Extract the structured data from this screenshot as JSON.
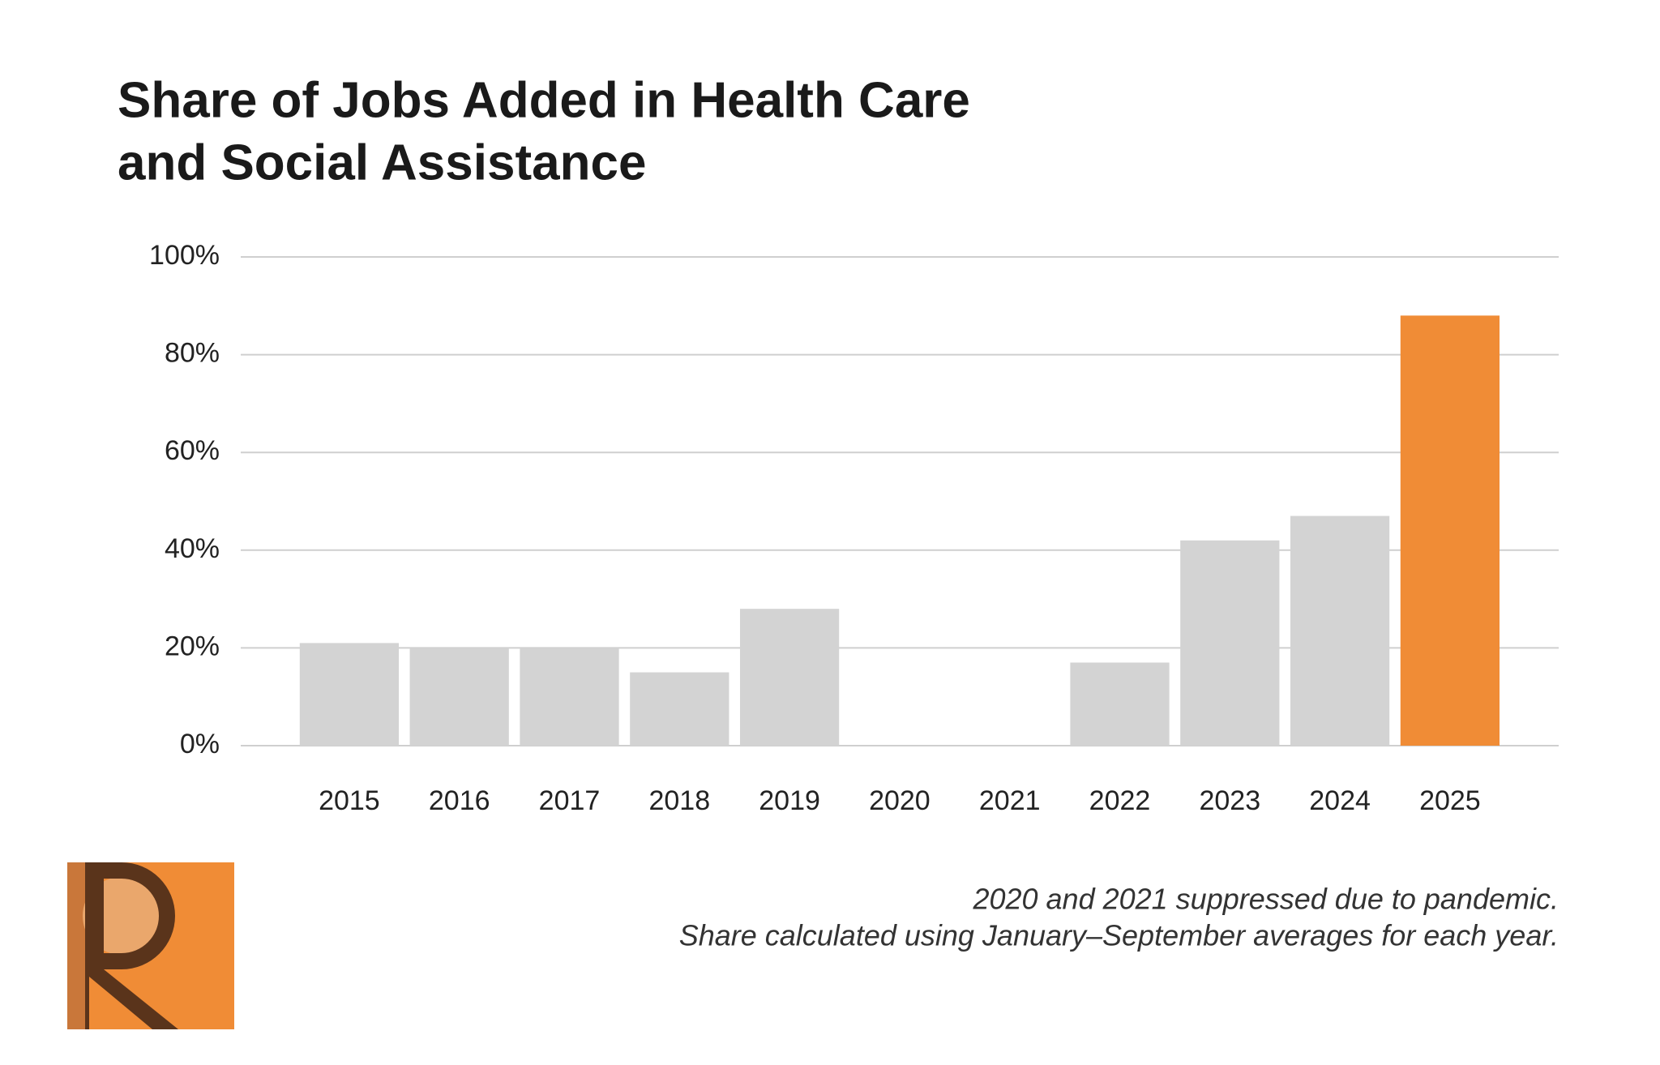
{
  "chart_data": {
    "type": "bar",
    "title": [
      "Share of Jobs Added in Health Care",
      "and Social Assistance"
    ],
    "categories": [
      "2015",
      "2016",
      "2017",
      "2018",
      "2019",
      "2020",
      "2021",
      "2022",
      "2023",
      "2024",
      "2025"
    ],
    "values": [
      21,
      20,
      20,
      15,
      28,
      null,
      null,
      17,
      42,
      47,
      88
    ],
    "colors": [
      "#d3d3d3",
      "#d3d3d3",
      "#d3d3d3",
      "#d3d3d3",
      "#d3d3d3",
      "#d3d3d3",
      "#d3d3d3",
      "#d3d3d3",
      "#d3d3d3",
      "#d3d3d3",
      "#f08c36"
    ],
    "ylim": [
      0,
      100
    ],
    "yticks": [
      {
        "value": 0,
        "label": "0%"
      },
      {
        "value": 20,
        "label": "20%"
      },
      {
        "value": 40,
        "label": "40%"
      },
      {
        "value": 60,
        "label": "60%"
      },
      {
        "value": 80,
        "label": "80%"
      },
      {
        "value": 100,
        "label": "100%"
      }
    ],
    "grid": true,
    "notes": [
      "2020 and 2021 suppressed due to pandemic.",
      "Share calculated using January–September averages for each year."
    ]
  }
}
